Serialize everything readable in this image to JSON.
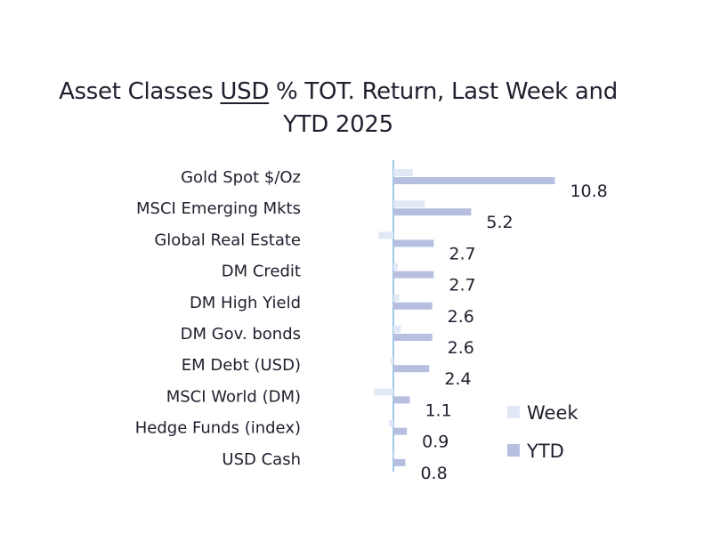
{
  "chart_data": {
    "type": "bar",
    "orientation": "horizontal",
    "title": {
      "part1": "Asset Classes ",
      "underlined": "USD",
      "part2": " % TOT. Return, Last Week and",
      "line2": "YTD 2025"
    },
    "categories": [
      "Gold Spot   $/Oz",
      "MSCI Emerging Mkts",
      "Global Real Estate",
      "DM Credit",
      "DM High Yield",
      "DM Gov. bonds",
      "EM Debt (USD)",
      "MSCI World (DM)",
      "Hedge Funds (index)",
      "USD Cash"
    ],
    "series": [
      {
        "name": "Week",
        "color": "#e3e8f7",
        "values": [
          1.3,
          2.1,
          -1.0,
          0.3,
          0.4,
          0.5,
          -0.2,
          -1.3,
          -0.3,
          0.1
        ]
      },
      {
        "name": "YTD",
        "color": "#b7bfe0",
        "values": [
          10.8,
          5.2,
          2.7,
          2.7,
          2.6,
          2.6,
          2.4,
          1.1,
          0.9,
          0.8
        ],
        "labels": [
          "10.8",
          "5.2",
          "2.7",
          "2.7",
          "2.6",
          "2.6",
          "2.4",
          "1.1",
          "0.9",
          "0.8"
        ]
      }
    ],
    "legend_position": "bottom-right",
    "grid": false,
    "zero_axis_color": "#9cc9e6"
  }
}
